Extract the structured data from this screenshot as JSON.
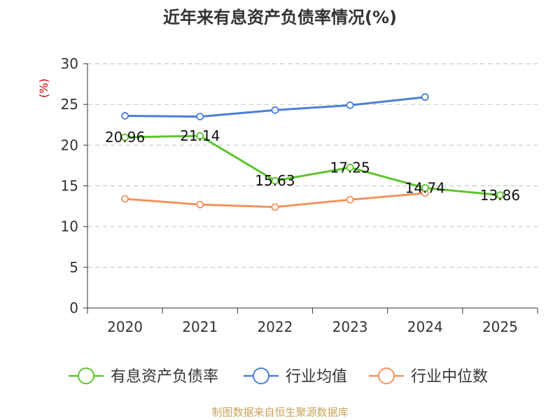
{
  "chart_data": {
    "type": "line",
    "title": "近年来有息资产负债率情况(%)",
    "ylabel": "(%)",
    "categories": [
      "2020",
      "2021",
      "2022",
      "2023",
      "2024",
      "2025"
    ],
    "ylim": [
      0,
      30
    ],
    "yticks": [
      0,
      5,
      10,
      15,
      20,
      25,
      30
    ],
    "grid": true,
    "legend_position": "bottom",
    "series": [
      {
        "name": "有息资产负债率",
        "color": "#5cc52b",
        "values": [
          20.96,
          21.14,
          15.63,
          17.25,
          14.74,
          13.86
        ],
        "labels": [
          "20.96",
          "21.14",
          "15.63",
          "17.25",
          "14.74",
          "13.86"
        ]
      },
      {
        "name": "行业均值",
        "color": "#4a7fd6",
        "values": [
          23.6,
          23.5,
          24.3,
          24.9,
          25.9,
          null
        ]
      },
      {
        "name": "行业中位数",
        "color": "#f39360",
        "values": [
          13.4,
          12.7,
          12.4,
          13.3,
          14.1,
          null
        ]
      }
    ],
    "source": "制图数据来自恒生聚源数据库"
  }
}
